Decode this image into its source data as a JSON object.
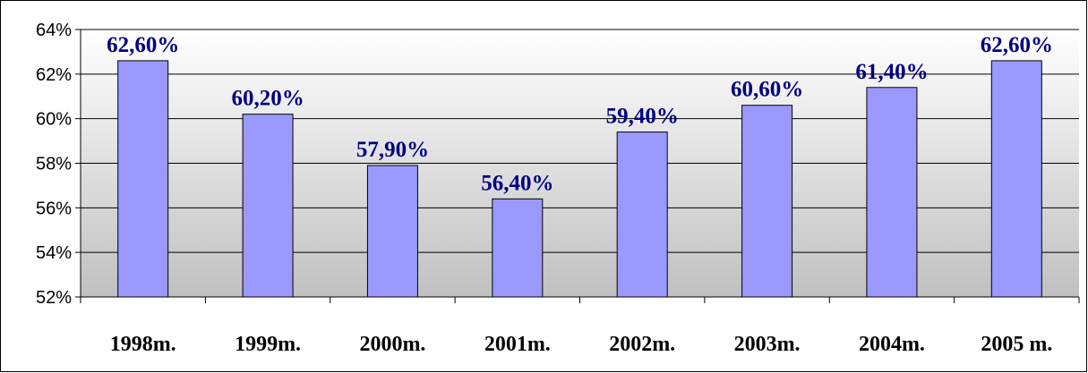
{
  "chart_data": {
    "type": "bar",
    "categories": [
      "1998m.",
      "1999m.",
      "2000m.",
      "2001m.",
      "2002m.",
      "2003m.",
      "2004m.",
      "2005 m."
    ],
    "values": [
      62.6,
      60.2,
      57.9,
      56.4,
      59.4,
      60.6,
      61.4,
      62.6
    ],
    "data_labels": [
      "62,60%",
      "60,20%",
      "57,90%",
      "56,40%",
      "59,40%",
      "60,60%",
      "61,40%",
      "62,60%"
    ],
    "ylim": [
      52,
      64
    ],
    "yticks": [
      52,
      54,
      56,
      58,
      60,
      62,
      64
    ],
    "ytick_labels": [
      "52%",
      "54%",
      "56%",
      "58%",
      "60%",
      "62%",
      "64%"
    ],
    "grid": true,
    "legend": "none",
    "colors": {
      "bar_fill": "#9999ff",
      "bar_stroke": "#000000",
      "data_label": "#000080",
      "plot_bg_top": "#ffffff",
      "plot_bg_bottom": "#c0c0c0",
      "grid": "#000000"
    }
  }
}
